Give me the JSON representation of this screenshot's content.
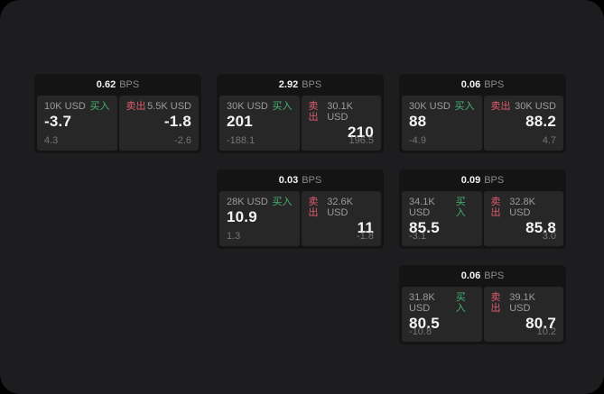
{
  "labels": {
    "buy": "买入",
    "sell": "卖出",
    "bps_unit": "BPS"
  },
  "colors": {
    "outer_bg": "#000000",
    "page_bg": "#1d1d1f",
    "card_bg": "#141414",
    "panel_bg": "#272727",
    "buy_accent": "#46b271",
    "sell_accent": "#dd5b6e",
    "value_text": "#f4f4f4",
    "muted_text": "#9b9b9b"
  },
  "cards": [
    {
      "bps": "0.62",
      "buy": {
        "amount": "10K USD",
        "price": "-3.7",
        "delta": "4.3"
      },
      "sell": {
        "amount": "5.5K USD",
        "price": "-1.8",
        "delta": "-2.6"
      }
    },
    {
      "bps": "2.92",
      "buy": {
        "amount": "30K USD",
        "price": "201",
        "delta": "-188.1"
      },
      "sell": {
        "amount": "30.1K USD",
        "price": "210",
        "delta": "196.5"
      }
    },
    {
      "bps": "0.06",
      "buy": {
        "amount": "30K USD",
        "price": "88",
        "delta": "-4.9"
      },
      "sell": {
        "amount": "30K USD",
        "price": "88.2",
        "delta": "4.7"
      }
    },
    {
      "bps": "0.03",
      "buy": {
        "amount": "28K USD",
        "price": "10.9",
        "delta": "1.3"
      },
      "sell": {
        "amount": "32.6K USD",
        "price": "11",
        "delta": "-1.8"
      }
    },
    {
      "bps": "0.09",
      "buy": {
        "amount": "34.1K USD",
        "price": "85.5",
        "delta": "-3.1"
      },
      "sell": {
        "amount": "32.8K USD",
        "price": "85.8",
        "delta": "3.0"
      }
    },
    {
      "bps": "0.06",
      "buy": {
        "amount": "31.8K USD",
        "price": "80.5",
        "delta": "-10.8"
      },
      "sell": {
        "amount": "39.1K USD",
        "price": "80.7",
        "delta": "10.2"
      }
    }
  ]
}
